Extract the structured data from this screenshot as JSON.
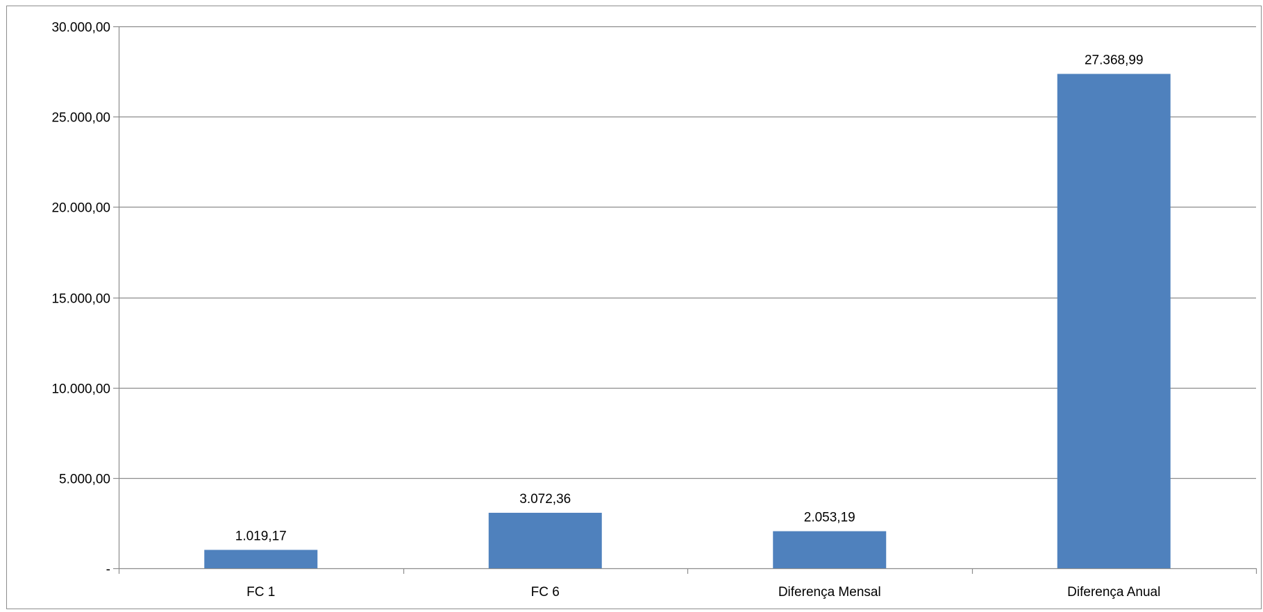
{
  "chart_data": {
    "type": "bar",
    "categories": [
      "FC 1",
      "FC 6",
      "Diferença Mensal",
      "Diferença Anual"
    ],
    "values": [
      1019.17,
      3072.36,
      2053.19,
      27368.99
    ],
    "value_labels": [
      "1.019,17",
      "3.072,36",
      "2.053,19",
      "27.368,99"
    ],
    "ylim": [
      0,
      30000
    ],
    "y_ticks": [
      0,
      5000,
      10000,
      15000,
      20000,
      25000,
      30000
    ],
    "y_tick_labels": [
      "-",
      "5.000,00",
      "10.000,00",
      "15.000,00",
      "20.000,00",
      "25.000,00",
      "30.000,00"
    ],
    "grid": true,
    "bar_color": "#4F81BD",
    "title": "",
    "xlabel": "",
    "ylabel": ""
  }
}
